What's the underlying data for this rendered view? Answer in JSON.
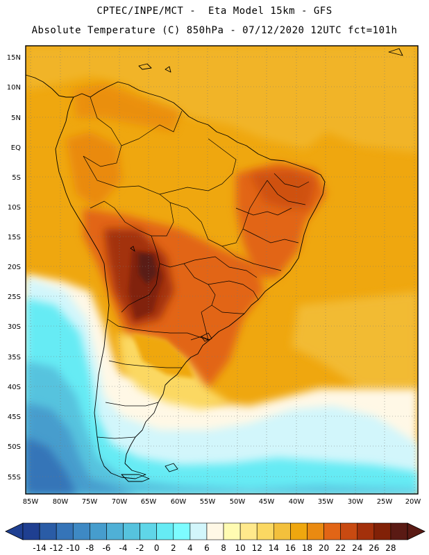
{
  "header": {
    "line1": "CPTEC/INPE/MCT -  Eta Model 15km - GFS",
    "line2": "Absolute Temperature (C) 850hPa - 07/12/2020 12UTC fct=101h"
  },
  "map": {
    "lat_labels": [
      "15N",
      "10N",
      "5N",
      "EQ",
      "5S",
      "10S",
      "15S",
      "20S",
      "25S",
      "30S",
      "35S",
      "40S",
      "45S",
      "50S",
      "55S"
    ],
    "lon_labels": [
      "85W",
      "80W",
      "75W",
      "70W",
      "65W",
      "60W",
      "55W",
      "50W",
      "45W",
      "40W",
      "35W",
      "30W",
      "25W",
      "20W"
    ]
  },
  "colorbar": {
    "labels": [
      "-14",
      "-12",
      "-10",
      "-8",
      "-6",
      "-4",
      "-2",
      "0",
      "2",
      "4",
      "6",
      "8",
      "10",
      "12",
      "14",
      "16",
      "18",
      "20",
      "22",
      "24",
      "26",
      "28"
    ],
    "colors": [
      "#1f3f91",
      "#2a5ca6",
      "#3574b8",
      "#3e89c4",
      "#469dcd",
      "#4fb0d6",
      "#56c3de",
      "#5fd6e8",
      "#66ebf4",
      "#7dfcff",
      "#d2f6fb",
      "#fff8e6",
      "#fffbb2",
      "#ffe98c",
      "#fbd862",
      "#f3c03c",
      "#efa70f",
      "#ea8a11",
      "#e26516",
      "#c84a11",
      "#a3300b",
      "#812107",
      "#5a1a14"
    ]
  }
}
